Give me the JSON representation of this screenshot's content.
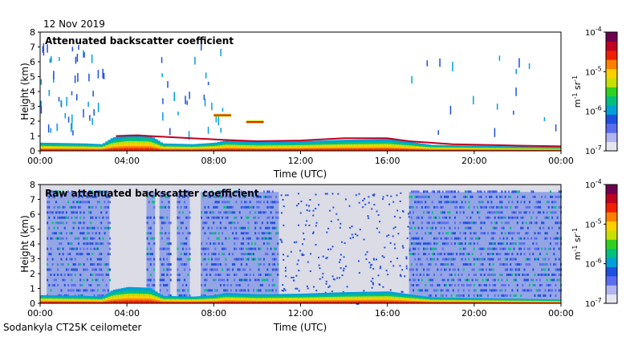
{
  "header": {
    "date": "12 Nov 2019"
  },
  "footer": {
    "instrument": "Sodankyla CT25K ceilometer"
  },
  "colorbar": {
    "tick_labels": [
      "10",
      "10",
      "10",
      "10"
    ],
    "tick_exponents": [
      "-7",
      "-6",
      "-5",
      "-4"
    ],
    "unit_base_m": "m",
    "unit_exp_m": "-1",
    "unit_base_sr": " sr",
    "unit_exp_sr": "-1",
    "colors": [
      "#e6e6f2",
      "#b0b4f0",
      "#5a6cf0",
      "#1f4fe0",
      "#00a0d8",
      "#00c080",
      "#30d020",
      "#c8e000",
      "#ffd000",
      "#ff8000",
      "#f02000",
      "#c00020",
      "#700050"
    ]
  },
  "chart_data": [
    {
      "type": "heatmap",
      "title": "Attenuated backscatter coefficient",
      "xlabel": "Time (UTC)",
      "ylabel": "Height (km)",
      "x_ticks": [
        "00:00",
        "04:00",
        "08:00",
        "12:00",
        "16:00",
        "20:00",
        "00:00"
      ],
      "y_ticks": [
        "0",
        "1",
        "2",
        "3",
        "4",
        "5",
        "6",
        "7",
        "8"
      ],
      "xlim_hours": [
        0,
        24
      ],
      "ylim_km": [
        0,
        8
      ],
      "color_scale": "log",
      "clim": [
        1e-07,
        0.0001
      ],
      "background": "white",
      "features": {
        "boundary_layer_top_km": [
          [
            0,
            0.55
          ],
          [
            2,
            0.5
          ],
          [
            2.8,
            0.45
          ],
          [
            3.3,
            0.9
          ],
          [
            4,
            1.1
          ],
          [
            5,
            1.05
          ],
          [
            5.6,
            0.5
          ],
          [
            7,
            0.45
          ],
          [
            8,
            0.55
          ],
          [
            8.5,
            0.7
          ],
          [
            10,
            0.6
          ],
          [
            12,
            0.65
          ],
          [
            14,
            0.75
          ],
          [
            16,
            0.8
          ],
          [
            17,
            0.6
          ],
          [
            18,
            0.4
          ],
          [
            20,
            0.35
          ],
          [
            22,
            0.3
          ],
          [
            24,
            0.25
          ]
        ],
        "elevated_layer_km": [
          [
            3.5,
            1.0
          ],
          [
            4.5,
            1.05
          ],
          [
            5.0,
            1.0
          ],
          [
            8.3,
            0.75
          ],
          [
            10,
            0.65
          ],
          [
            12,
            0.7
          ],
          [
            14,
            0.85
          ],
          [
            16,
            0.85
          ],
          [
            17,
            0.65
          ],
          [
            19,
            0.45
          ],
          [
            22,
            0.35
          ],
          [
            24,
            0.3
          ]
        ],
        "cloud_patches": [
          [
            8.0,
            2.3,
            2.5
          ],
          [
            9.5,
            1.85,
            2.05
          ]
        ]
      }
    },
    {
      "type": "heatmap",
      "title": "Raw attenuated backscatter coefficient",
      "xlabel": "Time (UTC)",
      "ylabel": "Height (km)",
      "x_ticks": [
        "00:00",
        "04:00",
        "08:00",
        "12:00",
        "16:00",
        "20:00",
        "00:00"
      ],
      "y_ticks": [
        "0",
        "1",
        "2",
        "3",
        "4",
        "5",
        "6",
        "7",
        "8"
      ],
      "xlim_hours": [
        0,
        24
      ],
      "ylim_km": [
        0,
        8
      ],
      "color_scale": "log",
      "clim": [
        1e-07,
        0.0001
      ],
      "background": "light grey",
      "features": {
        "noise_blocks_hours": [
          [
            0.3,
            3.2
          ],
          [
            4.9,
            5.3
          ],
          [
            5.5,
            6.0
          ],
          [
            6.3,
            6.9
          ],
          [
            7.4,
            11.0
          ],
          [
            17.0,
            24.0
          ]
        ],
        "data_top_km": 7.5,
        "boundary_layer_top_km": [
          [
            0,
            0.55
          ],
          [
            2,
            0.5
          ],
          [
            2.8,
            0.45
          ],
          [
            3.3,
            0.9
          ],
          [
            4,
            1.1
          ],
          [
            5,
            1.05
          ],
          [
            5.6,
            0.5
          ],
          [
            7,
            0.45
          ],
          [
            8,
            0.55
          ],
          [
            8.5,
            0.7
          ],
          [
            10,
            0.6
          ],
          [
            12,
            0.65
          ],
          [
            14,
            0.75
          ],
          [
            16,
            0.8
          ],
          [
            17,
            0.6
          ],
          [
            18,
            0.4
          ],
          [
            20,
            0.35
          ],
          [
            22,
            0.3
          ],
          [
            24,
            0.25
          ]
        ]
      }
    }
  ]
}
